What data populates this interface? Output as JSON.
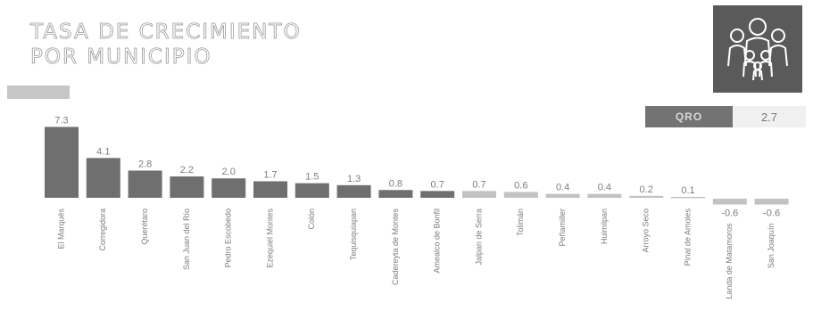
{
  "title_lines": [
    "TASA DE CRECIMIENTO",
    "POR MUNICIPIO"
  ],
  "logo": {
    "icon": "family-group-icon",
    "bg": "#5a5a5a"
  },
  "reference": {
    "label": "QRO",
    "value": "2.7"
  },
  "colors": {
    "bar_dark": "#6f6f6f",
    "bar_light": "#c2c2c2",
    "legend": "#c6c6c6",
    "label": "#7d7d7d"
  },
  "chart_data": {
    "type": "bar",
    "title": "TASA DE CRECIMIENTO POR MUNICIPIO",
    "categories": [
      "El Marqués",
      "Corregidora",
      "Querétaro",
      "San Juan del Río",
      "Pedro Escobedo",
      "Ezequiel Montes",
      "Colón",
      "Tequisquiapan",
      "Cadereyta de Montes",
      "Amealco de Bonfil",
      "Jalpan de Serra",
      "Tolimán",
      "Peñamiller",
      "Huimilpan",
      "Arroyo Seco",
      "Pinal de Amoles",
      "Landa de Matamoros",
      "San Joaquín"
    ],
    "values": [
      7.3,
      4.1,
      2.8,
      2.2,
      2.0,
      1.7,
      1.5,
      1.3,
      0.8,
      0.7,
      0.7,
      0.6,
      0.4,
      0.4,
      0.2,
      0.1,
      -0.6,
      -0.6
    ],
    "value_labels": [
      "7.3",
      "4.1",
      "2.8",
      "2.2",
      "2.0",
      "1.7",
      "1.5",
      "1.3",
      "0.8",
      "0.7",
      "0.7",
      "0.6",
      "0.4",
      "0.4",
      "0.2",
      "0.1",
      "-0.6",
      "-0.6"
    ],
    "xlabel": "",
    "ylabel": "",
    "ylim": [
      -0.6,
      7.3
    ],
    "grid": false,
    "legend": "none"
  }
}
